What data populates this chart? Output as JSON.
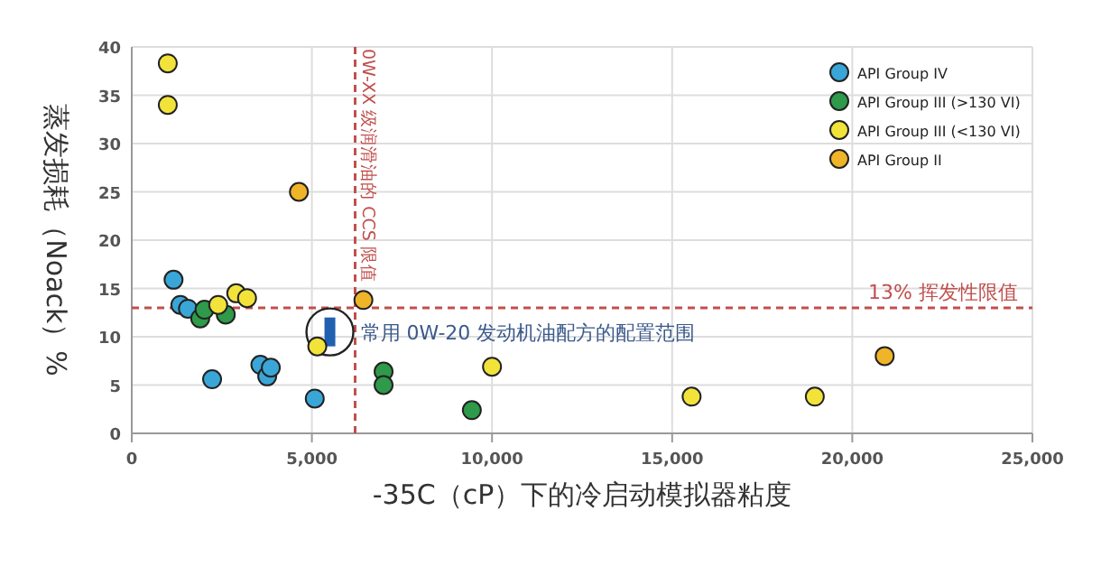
{
  "chart_data": {
    "type": "scatter",
    "xlabel": "-35C（cP）下的冷启动模拟器粘度",
    "ylabel": "蒸发损耗（Noack）%",
    "xlim": [
      0,
      25000
    ],
    "ylim": [
      0,
      40
    ],
    "xticks": [
      {
        "value": 0,
        "label": "0"
      },
      {
        "value": 5000,
        "label": "5,000"
      },
      {
        "value": 10000,
        "label": "10,000"
      },
      {
        "value": 15000,
        "label": "15,000"
      },
      {
        "value": 20000,
        "label": "20,000"
      },
      {
        "value": 25000,
        "label": "25,000"
      }
    ],
    "yticks": [
      0,
      5,
      10,
      15,
      20,
      25,
      30,
      35,
      40
    ],
    "grid": true,
    "legend": "top right",
    "marker": "circle",
    "series": [
      {
        "name": "API Group IV",
        "color": "#3aa6d8",
        "x": [
          1160,
          1350,
          1560,
          2230,
          3570,
          3760,
          3860,
          5080
        ],
        "values": [
          15.9,
          13.3,
          12.9,
          5.6,
          7.1,
          5.9,
          6.8,
          3.6
        ]
      },
      {
        "name": "API Group III (>130 VI)",
        "color": "#2e9a4a",
        "x": [
          1900,
          2020,
          2610,
          6990,
          6990,
          9440
        ],
        "values": [
          11.9,
          12.8,
          12.3,
          6.4,
          5.0,
          2.4
        ]
      },
      {
        "name": "API Group III (<130 VI)",
        "color": "#f2e33a",
        "x": [
          1000,
          1000,
          2400,
          2900,
          3200,
          5150,
          10000,
          15540,
          18960
        ],
        "values": [
          38.3,
          34.0,
          13.3,
          14.5,
          14.0,
          9.0,
          6.9,
          3.8,
          3.8
        ]
      },
      {
        "name": "API Group II",
        "color": "#f0b429",
        "x": [
          4640,
          6430,
          20900
        ],
        "values": [
          25.0,
          13.8,
          8.0
        ]
      }
    ],
    "ref_lines": [
      {
        "axis": "x",
        "value": 6200,
        "label": "0W-XX 级润滑油的 CCS 限值",
        "color": "#c0504d",
        "line_style": "dashed"
      },
      {
        "axis": "y",
        "value": 13,
        "label": "13% 挥发性限值",
        "color": "#c0504d",
        "line_style": "dashed"
      }
    ],
    "annotations": [
      {
        "text": "常用 0W-20 发动机油配方的配置范围",
        "x": 5500,
        "y": 10.5
      }
    ]
  }
}
